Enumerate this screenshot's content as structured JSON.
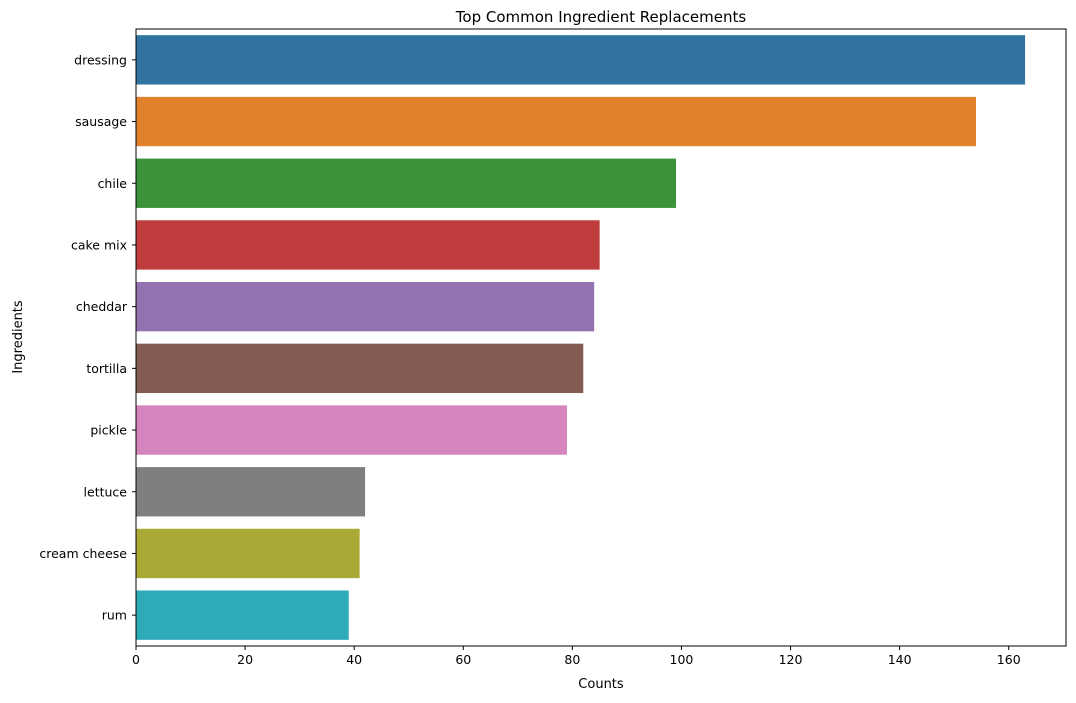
{
  "chart_data": {
    "type": "bar",
    "orientation": "horizontal",
    "title": "Top Common Ingredient Replacements",
    "xlabel": "Counts",
    "ylabel": "Ingredients",
    "categories": [
      "dressing",
      "sausage",
      "chile",
      "cake mix",
      "cheddar",
      "tortilla",
      "pickle",
      "lettuce",
      "cream cheese",
      "rum"
    ],
    "values": [
      163,
      154,
      99,
      85,
      84,
      82,
      79,
      42,
      41,
      39
    ],
    "colors": [
      "#3274a1",
      "#e1812c",
      "#3a923a",
      "#c03d3e",
      "#9372b2",
      "#845b53",
      "#d684bd",
      "#7f7f7f",
      "#a9aa35",
      "#2eabb8"
    ],
    "xlim": [
      0,
      170.5
    ],
    "xticks": [
      0,
      20,
      40,
      60,
      80,
      100,
      120,
      140,
      160
    ],
    "grid": false,
    "legend": "none"
  }
}
